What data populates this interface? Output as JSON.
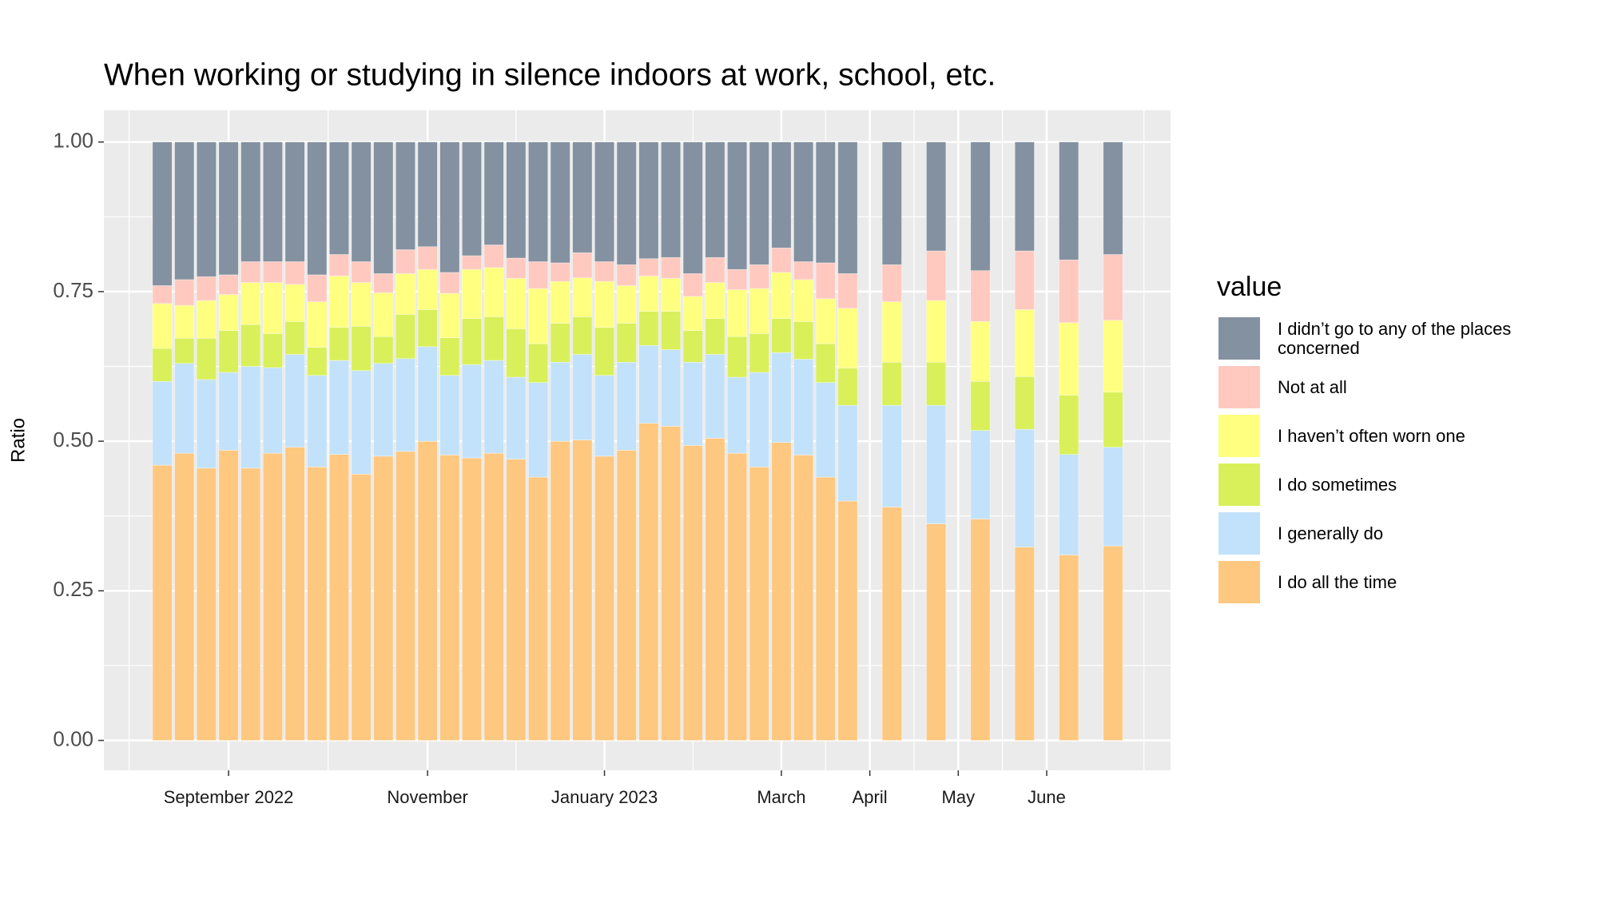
{
  "chart_data": {
    "type": "stacked_bar",
    "title": "When working or studying in silence indoors at work, school, etc.",
    "y_label": "Ratio",
    "legend_title": "value",
    "legend_position": "right",
    "x": [
      0,
      1,
      2,
      3,
      4,
      5,
      6,
      7,
      8,
      9,
      10,
      11,
      12,
      13,
      14,
      15,
      16,
      17,
      18,
      19,
      20,
      21,
      22,
      23,
      24,
      25,
      26,
      27,
      28,
      29,
      30,
      31,
      33,
      35,
      37,
      39,
      41,
      43
    ],
    "xlim": [
      -2.64,
      45.6
    ],
    "xticks": [
      {
        "value": 3,
        "label": "September 2022"
      },
      {
        "value": 12,
        "label": "November"
      },
      {
        "value": 20,
        "label": "January 2023"
      },
      {
        "value": 28,
        "label": "March"
      },
      {
        "value": 32,
        "label": "April"
      },
      {
        "value": 36,
        "label": "May"
      },
      {
        "value": 40,
        "label": "June"
      }
    ],
    "xminor": [
      -1.5,
      7.5,
      16,
      24,
      30,
      34,
      38,
      44.4
    ],
    "ylim": [
      -0.05,
      1.053
    ],
    "yticks": [
      {
        "value": 0,
        "label": "0.00"
      },
      0.25,
      {
        "value": 0.5,
        "label": "0.50"
      },
      0.75,
      {
        "value": 1,
        "label": "1.00"
      }
    ],
    "yminor": [
      0.125,
      0.375,
      0.625,
      0.875
    ],
    "grid": true,
    "series": [
      {
        "name": "I do all the time",
        "color": "#ffc880",
        "values": [
          0.46,
          0.48,
          0.455,
          0.485,
          0.455,
          0.48,
          0.49,
          0.457,
          0.478,
          0.445,
          0.475,
          0.483,
          0.5,
          0.477,
          0.472,
          0.48,
          0.47,
          0.44,
          0.5,
          0.502,
          0.475,
          0.485,
          0.53,
          0.525,
          0.493,
          0.505,
          0.48,
          0.457,
          0.498,
          0.477,
          0.44,
          0.4,
          0.39,
          0.362,
          0.37,
          0.323,
          0.31,
          0.325
        ]
      },
      {
        "name": "I generally do",
        "color": "#c2e2fb",
        "values": [
          0.14,
          0.15,
          0.148,
          0.13,
          0.17,
          0.143,
          0.155,
          0.153,
          0.157,
          0.173,
          0.155,
          0.155,
          0.158,
          0.133,
          0.156,
          0.155,
          0.137,
          0.158,
          0.132,
          0.143,
          0.135,
          0.147,
          0.13,
          0.128,
          0.139,
          0.14,
          0.127,
          0.158,
          0.15,
          0.16,
          0.158,
          0.16,
          0.17,
          0.198,
          0.148,
          0.197,
          0.168,
          0.165
        ]
      },
      {
        "name": "I do sometimes",
        "color": "#d9f05a",
        "values": [
          0.055,
          0.042,
          0.069,
          0.07,
          0.07,
          0.057,
          0.055,
          0.047,
          0.055,
          0.074,
          0.045,
          0.074,
          0.062,
          0.063,
          0.077,
          0.073,
          0.081,
          0.065,
          0.065,
          0.063,
          0.08,
          0.065,
          0.057,
          0.064,
          0.053,
          0.06,
          0.068,
          0.065,
          0.057,
          0.063,
          0.065,
          0.062,
          0.072,
          0.072,
          0.082,
          0.088,
          0.099,
          0.092
        ]
      },
      {
        "name": "I haven’t often worn one",
        "color": "#ffff80",
        "values": [
          0.075,
          0.055,
          0.063,
          0.06,
          0.07,
          0.085,
          0.062,
          0.076,
          0.086,
          0.073,
          0.073,
          0.068,
          0.067,
          0.074,
          0.082,
          0.082,
          0.084,
          0.092,
          0.07,
          0.065,
          0.077,
          0.063,
          0.059,
          0.055,
          0.057,
          0.06,
          0.078,
          0.075,
          0.077,
          0.07,
          0.075,
          0.1,
          0.101,
          0.103,
          0.1,
          0.112,
          0.121,
          0.12
        ]
      },
      {
        "name": "Not at all",
        "color": "#ffc9c0",
        "values": [
          0.03,
          0.043,
          0.04,
          0.033,
          0.035,
          0.035,
          0.038,
          0.045,
          0.036,
          0.035,
          0.032,
          0.04,
          0.038,
          0.035,
          0.023,
          0.038,
          0.034,
          0.045,
          0.031,
          0.042,
          0.033,
          0.035,
          0.029,
          0.035,
          0.038,
          0.042,
          0.034,
          0.04,
          0.041,
          0.03,
          0.06,
          0.058,
          0.062,
          0.083,
          0.085,
          0.098,
          0.105,
          0.11
        ]
      },
      {
        "name": "I didn’t go to any of the places concerned",
        "color": "#8491a0",
        "values": [
          0.24,
          0.23,
          0.225,
          0.222,
          0.2,
          0.2,
          0.2,
          0.222,
          0.188,
          0.2,
          0.22,
          0.18,
          0.175,
          0.218,
          0.19,
          0.172,
          0.194,
          0.2,
          0.202,
          0.185,
          0.2,
          0.205,
          0.195,
          0.193,
          0.22,
          0.193,
          0.213,
          0.205,
          0.177,
          0.2,
          0.202,
          0.22,
          0.205,
          0.182,
          0.215,
          0.182,
          0.197,
          0.188
        ]
      }
    ]
  }
}
